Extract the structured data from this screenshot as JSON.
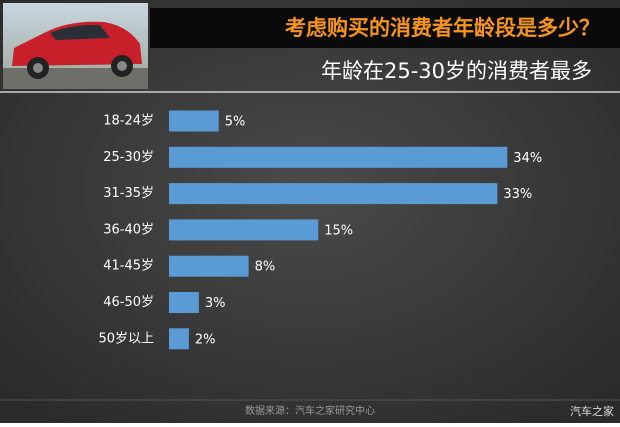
{
  "chart_data": {
    "type": "bar",
    "orientation": "horizontal",
    "title": "考虑购买的消费者年龄段是多少？",
    "subtitle": "年龄在25-30岁的消费者最多",
    "categories": [
      "18-24岁",
      "25-30岁",
      "31-35岁",
      "36-40岁",
      "41-45岁",
      "46-50岁",
      "50岁以上"
    ],
    "values": [
      5,
      34,
      33,
      15,
      8,
      3,
      2
    ],
    "value_labels": [
      "5%",
      "34%",
      "33%",
      "15%",
      "8%",
      "3%",
      "2%"
    ],
    "color": "#5b9bd5",
    "source": "数据来源：汽车之家研究中心",
    "watermark": "汽车之家"
  }
}
